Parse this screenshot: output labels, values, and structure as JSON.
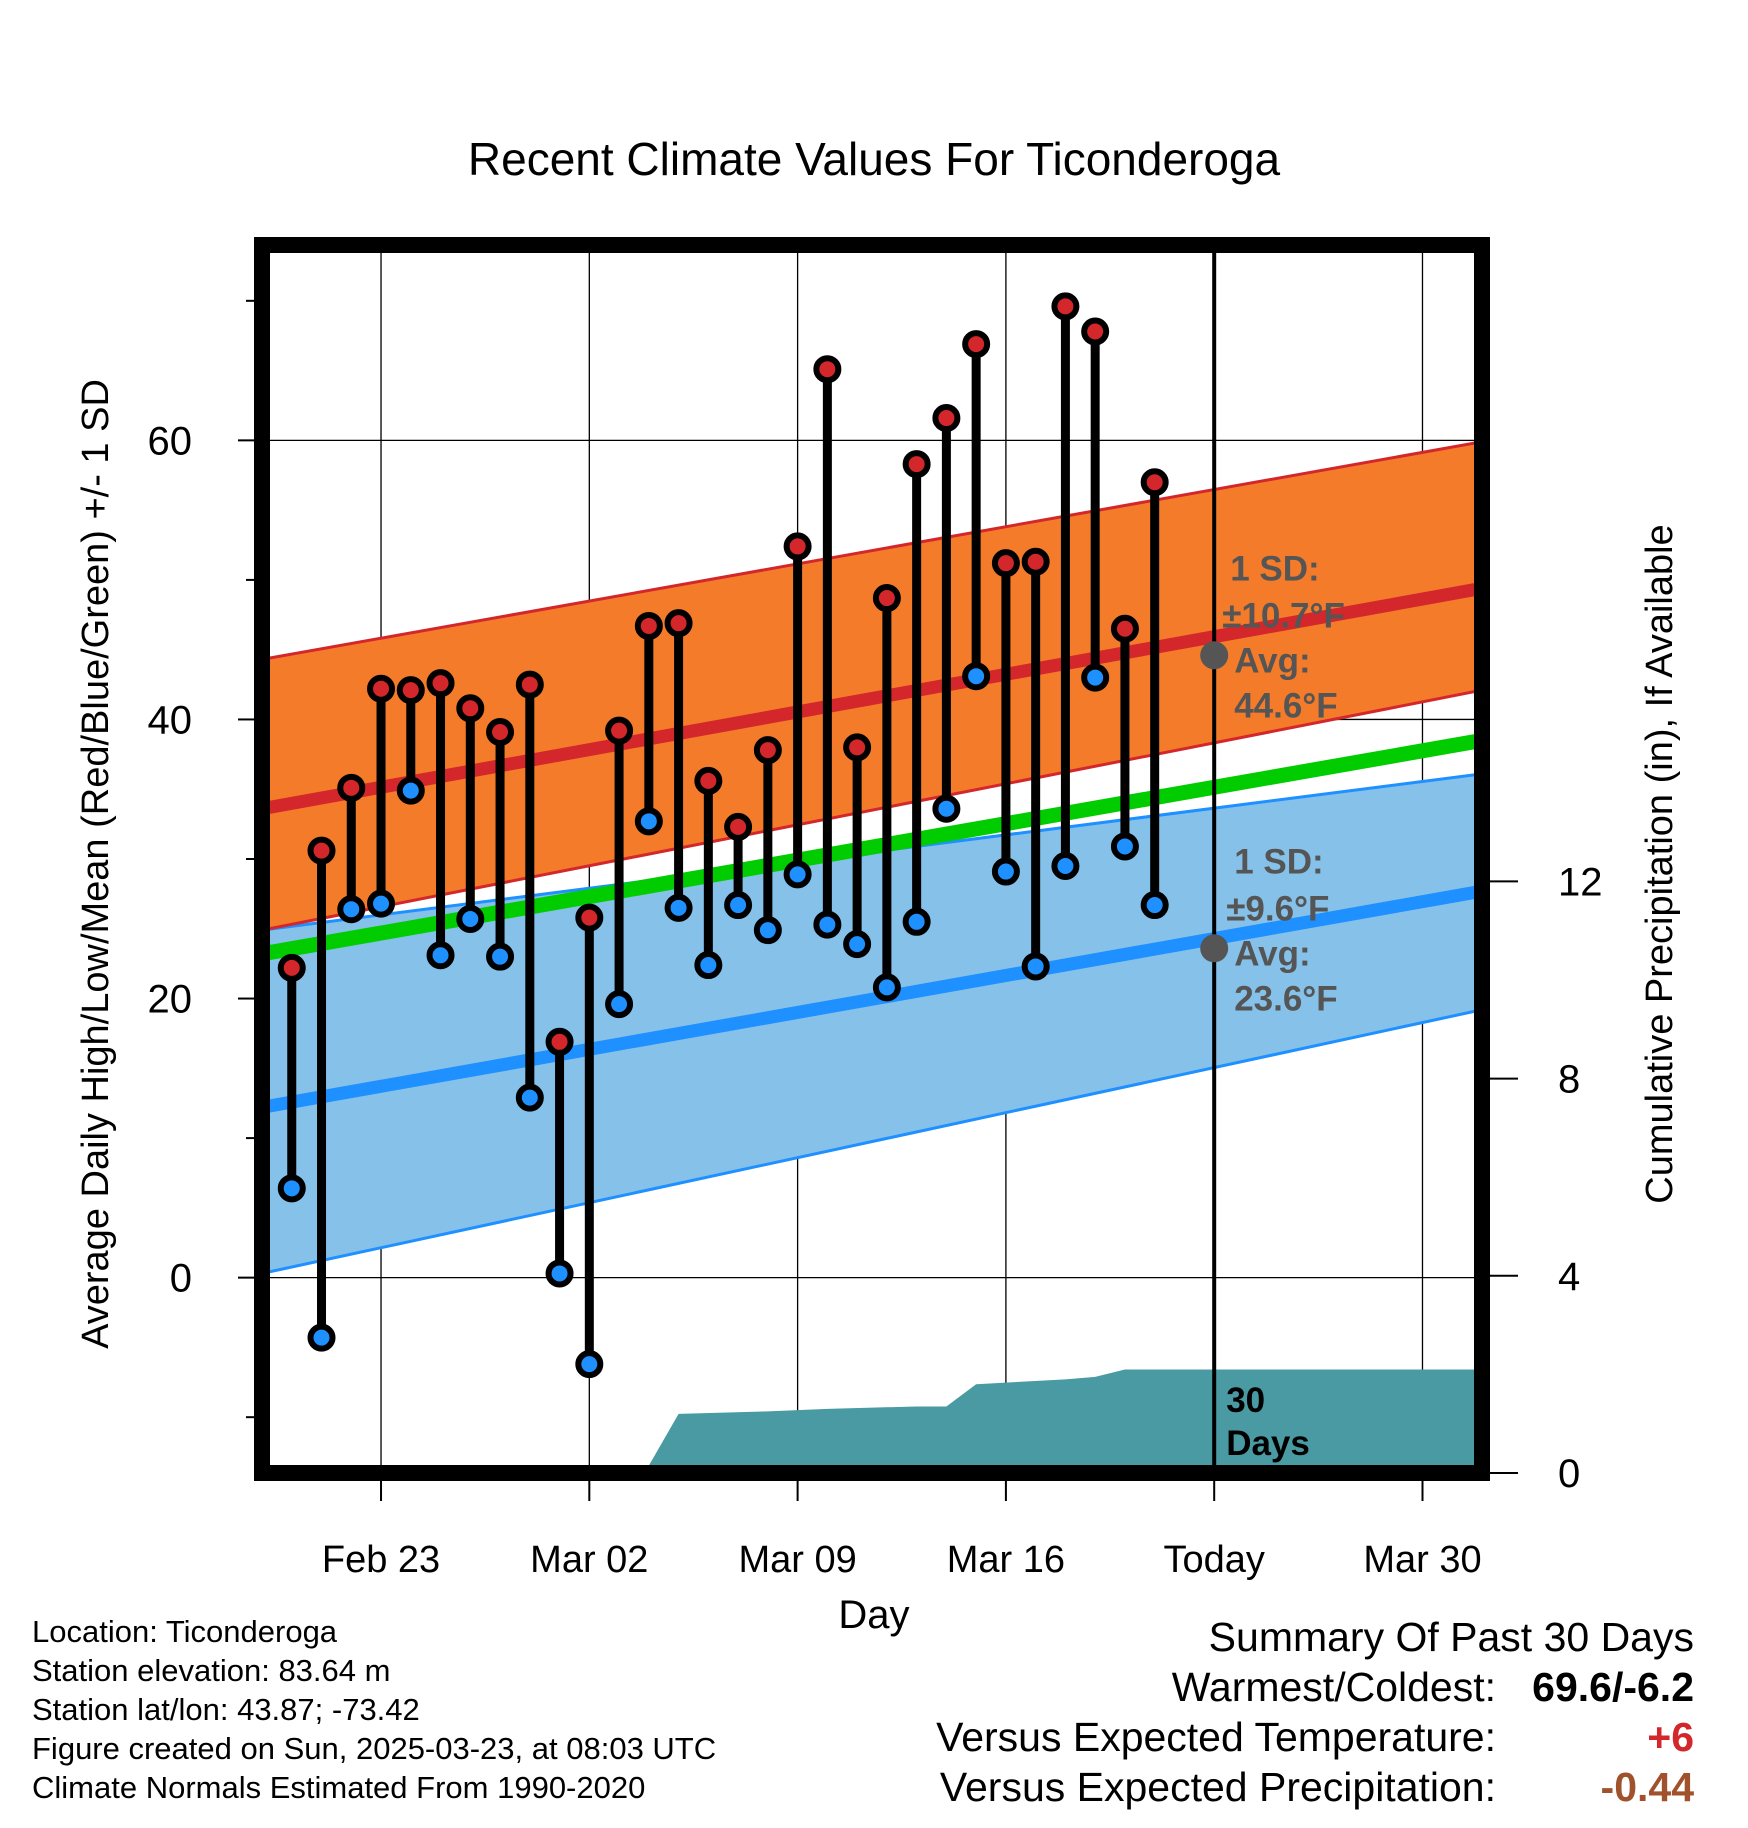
{
  "chart_data": {
    "type": "line",
    "title": "Recent Climate Values For Ticonderoga",
    "xlabel": "Day",
    "ylabel": "Average Daily High/Low/Mean (Red/Blue/Green) +/- 1 SD",
    "y2label": "Cumulative Precipitation (in), If Available",
    "x_ticks": [
      "Feb 23",
      "Mar 02",
      "Mar 09",
      "Mar 16",
      "Today",
      "Mar 30"
    ],
    "y_ticks": [
      0,
      20,
      40,
      60
    ],
    "y2_ticks": [
      0,
      4,
      8,
      12
    ],
    "ylim": [
      -14,
      74
    ],
    "xlim": [
      "2025-02-19",
      "2025-04-01"
    ],
    "grid": true,
    "today_date": "2025-03-23",
    "normals": {
      "high_avg": {
        "start": 33.6,
        "end": 49.4,
        "color": "#d3272b"
      },
      "high_sd_band": {
        "upper_start": 44.3,
        "upper_end": 59.9,
        "lower_start": 24.9,
        "lower_end": 42.1,
        "color": "#f47b2a"
      },
      "low_avg": {
        "start": 12.2,
        "end": 27.7,
        "color": "#1e90ff"
      },
      "low_sd_band": {
        "upper_start": 24.9,
        "upper_end": 36.1,
        "lower_start": 0.3,
        "lower_end": 19.2,
        "color": "#85c1e9"
      },
      "mean_avg": {
        "start": 23.2,
        "end": 38.5,
        "color": "#00cc00"
      }
    },
    "series": [
      {
        "name": "High",
        "color": "#d3272b",
        "values": [
          22.2,
          30.6,
          35.1,
          42.2,
          42.1,
          42.6,
          40.8,
          39.1,
          42.5,
          16.9,
          25.8,
          39.2,
          46.7,
          46.9,
          35.6,
          32.3,
          37.8,
          52.4,
          65.1,
          38.0,
          48.7,
          58.3,
          61.6,
          66.9,
          51.2,
          51.3,
          69.6,
          67.8,
          46.5,
          57.0
        ]
      },
      {
        "name": "Low",
        "color": "#1e90ff",
        "values": [
          6.4,
          -4.3,
          26.4,
          26.8,
          34.9,
          23.1,
          25.7,
          23.0,
          12.9,
          0.3,
          -6.2,
          19.6,
          32.7,
          26.5,
          22.4,
          26.7,
          24.9,
          28.9,
          25.3,
          23.9,
          20.8,
          25.5,
          33.6,
          43.1,
          29.1,
          22.3,
          29.5,
          43.0,
          30.9,
          26.7
        ]
      }
    ],
    "dates": [
      "2025-02-20",
      "2025-02-21",
      "2025-02-22",
      "2025-02-23",
      "2025-02-24",
      "2025-02-25",
      "2025-02-26",
      "2025-02-27",
      "2025-02-28",
      "2025-03-01",
      "2025-03-02",
      "2025-03-03",
      "2025-03-04",
      "2025-03-05",
      "2025-03-06",
      "2025-03-07",
      "2025-03-08",
      "2025-03-09",
      "2025-03-10",
      "2025-03-11",
      "2025-03-12",
      "2025-03-13",
      "2025-03-14",
      "2025-03-15",
      "2025-03-16",
      "2025-03-17",
      "2025-03-18",
      "2025-03-19",
      "2025-03-20",
      "2025-03-21"
    ],
    "precip": {
      "color": "#4a9aa3",
      "dates": [
        "2025-02-26",
        "2025-02-27",
        "2025-02-28",
        "2025-03-01",
        "2025-03-02",
        "2025-03-03",
        "2025-03-04",
        "2025-03-05",
        "2025-03-08",
        "2025-03-10",
        "2025-03-13",
        "2025-03-14",
        "2025-03-15",
        "2025-03-18",
        "2025-03-19",
        "2025-03-20",
        "2025-04-01"
      ],
      "values": [
        0.0,
        0.1,
        0.15,
        0.15,
        0.15,
        0.15,
        0.15,
        1.2,
        1.25,
        1.3,
        1.35,
        1.35,
        1.8,
        1.9,
        1.95,
        2.1,
        2.1
      ]
    },
    "annotations": {
      "high_sd_title": "1 SD:",
      "high_sd_value": "±10.7°F",
      "high_avg_title": "Avg:",
      "high_avg_value": "44.6°F",
      "high_avg_today": 44.6,
      "low_sd_title": "1 SD:",
      "low_sd_value": "±9.6°F",
      "low_avg_title": "Avg:",
      "low_avg_value": "23.6°F",
      "low_avg_today": 23.6,
      "days_label_1": "30",
      "days_label_2": "Days",
      "marker_color": "#555555"
    }
  },
  "footer_left": [
    "Location: Ticonderoga",
    "Station elevation: 83.64 m",
    "Station lat/lon: 43.87; -73.42",
    "Figure created on Sun, 2025-03-23, at 08:03 UTC",
    "Climate Normals Estimated From 1990-2020"
  ],
  "summary": {
    "title": "Summary Of Past 30 Days",
    "rows": [
      {
        "label": "Warmest/Coldest:",
        "value": "69.6/-6.2",
        "color": "#000000"
      },
      {
        "label": "Versus Expected Temperature:",
        "value": "+6",
        "color": "#d3272b"
      },
      {
        "label": "Versus Expected Precipitation:",
        "value": "-0.44",
        "color": "#a0522d"
      }
    ]
  }
}
